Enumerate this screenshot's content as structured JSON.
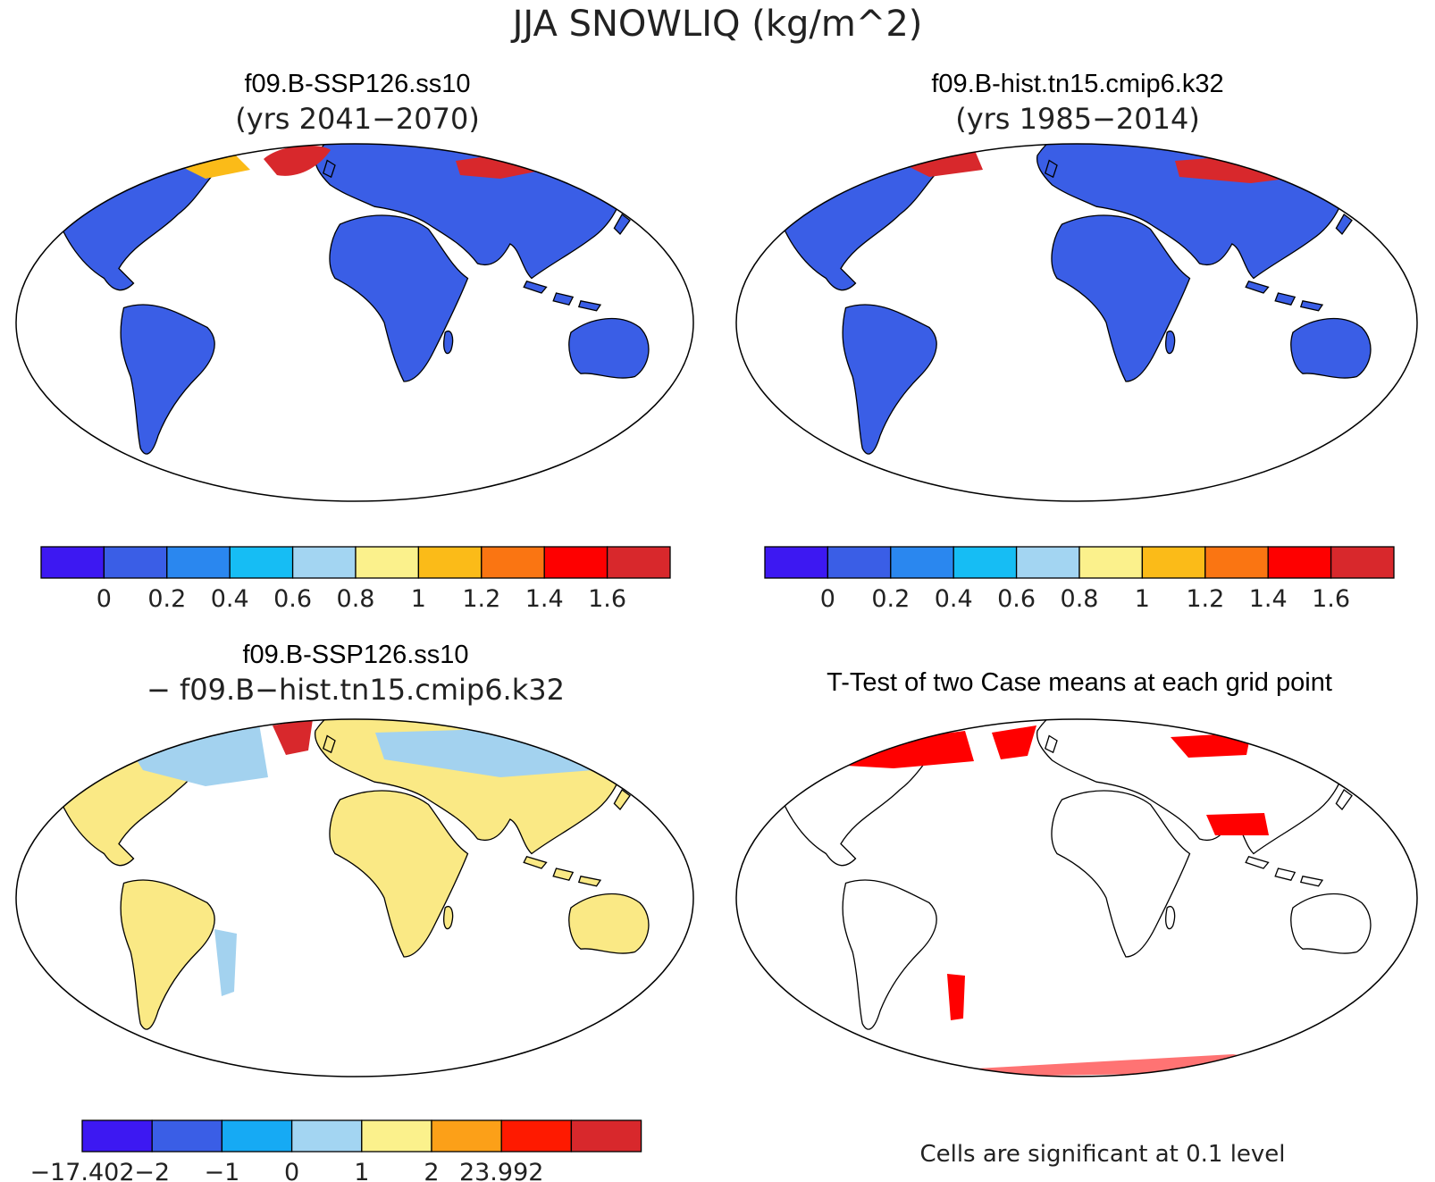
{
  "main_title": "JJA SNOWLIQ (kg/m^2)",
  "colors": {
    "land_base": "#3a5ee6",
    "diff_land": "#fae985",
    "diff_light_blue": "#a3d2ef",
    "signif_red": "#ff0000",
    "outline": "#000000"
  },
  "panels": {
    "top_left": {
      "title": "f09.B-SSP126.ss10",
      "subtitle": "(yrs 2041−2070)"
    },
    "top_right": {
      "title": "f09.B-hist.tn15.cmip6.k32",
      "subtitle": "(yrs 1985−2014)"
    },
    "bottom_left": {
      "title": "f09.B-SSP126.ss10",
      "subtitle": "− f09.B−hist.tn15.cmip6.k32"
    },
    "bottom_right": {
      "title": "T-Test of two Case means at each grid point",
      "note": "Cells are significant at 0.1 level"
    }
  },
  "colorbar_abs": {
    "colors": [
      "#3d18f2",
      "#3a5ee6",
      "#2a87ef",
      "#16bdf4",
      "#a3d5f2",
      "#fbf18c",
      "#fbbb18",
      "#fa7512",
      "#fe0000",
      "#d8282c"
    ],
    "labels": [
      "0",
      "0.2",
      "0.4",
      "0.6",
      "0.8",
      "1",
      "1.2",
      "1.4",
      "1.6"
    ]
  },
  "colorbar_diff": {
    "colors": [
      "#3d18f2",
      "#3a5ee6",
      "#16aaf4",
      "#a3d5f2",
      "#fbf18c",
      "#fca018",
      "#fe1a00",
      "#d8282c"
    ],
    "labels": [
      "−17.402",
      "−2",
      "−1",
      "0",
      "1",
      "2",
      "23.992"
    ]
  }
}
